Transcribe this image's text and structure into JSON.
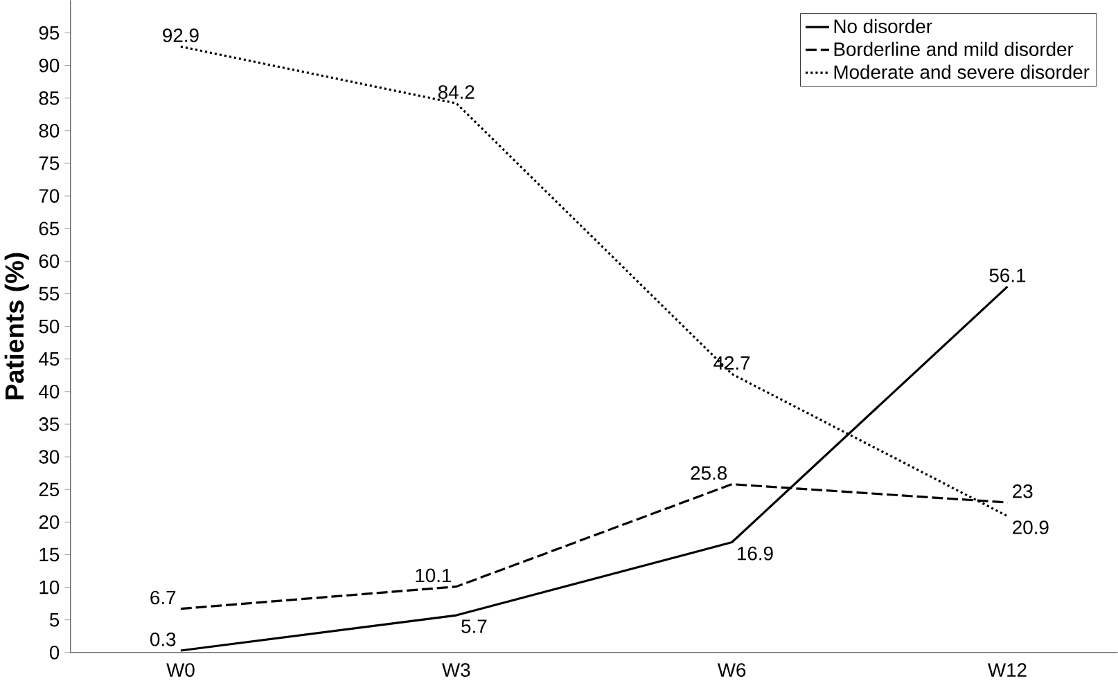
{
  "chart_data": {
    "type": "line",
    "ylabel": "Patients (%)",
    "categories": [
      "W0",
      "W3",
      "W6",
      "W12"
    ],
    "series": [
      {
        "name": "No disorder",
        "color": "#000000",
        "line_style": "solid",
        "values": [
          0.3,
          5.7,
          16.9,
          56.1
        ]
      },
      {
        "name": "Borderline and mild disorder",
        "color": "#000000",
        "line_style": "dashed",
        "values": [
          6.7,
          10.1,
          25.8,
          23
        ]
      },
      {
        "name": "Moderate and severe disorder",
        "color": "#000000",
        "line_style": "dotted",
        "values": [
          92.9,
          84.2,
          42.7,
          20.9
        ]
      }
    ],
    "ylim": [
      0,
      100
    ],
    "yticks": [
      0,
      5,
      10,
      15,
      20,
      25,
      30,
      35,
      40,
      45,
      50,
      55,
      60,
      65,
      70,
      75,
      80,
      85,
      90,
      95
    ],
    "grid": false,
    "legend": "top right",
    "data_labels": true
  }
}
